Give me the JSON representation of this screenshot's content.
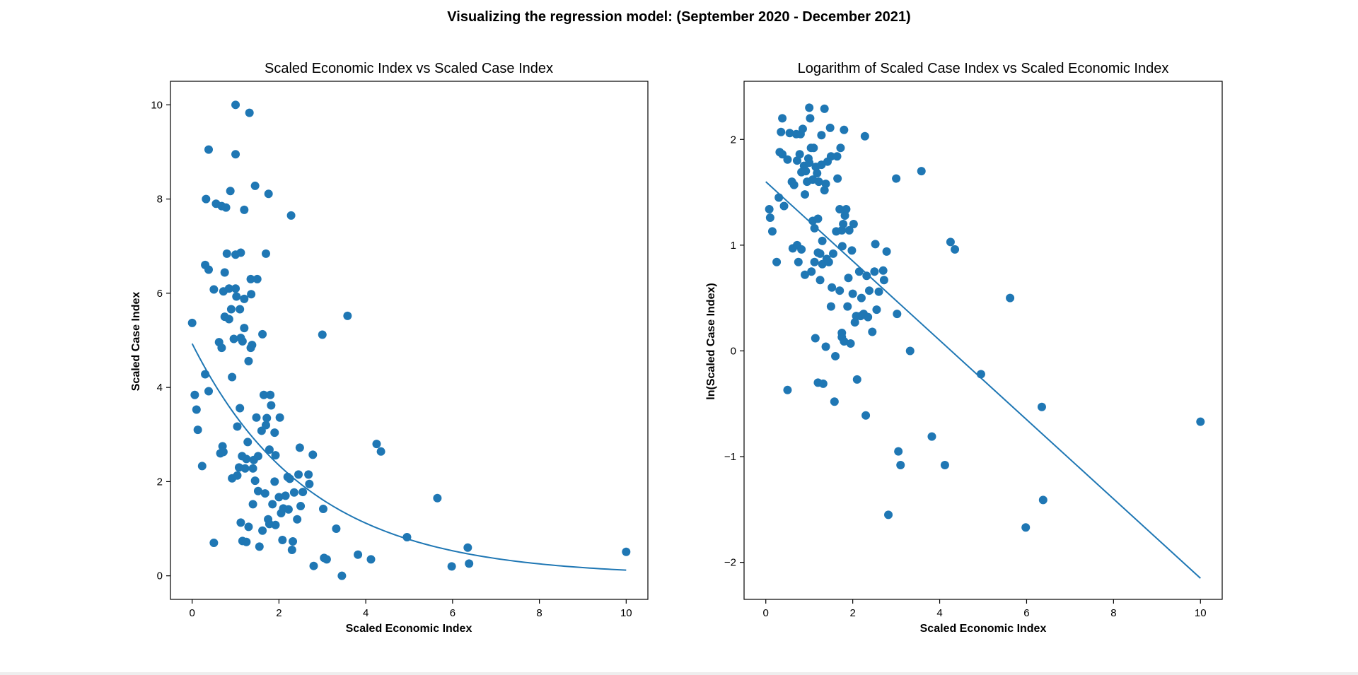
{
  "suptitle": "Visualizing the regression model: (September 2020 - December 2021)",
  "colors": {
    "point": "#1f77b4",
    "line": "#1f77b4",
    "axes": "#000000",
    "background": "#ffffff"
  },
  "chart_data": [
    {
      "type": "scatter",
      "title": "Scaled Economic Index vs Scaled Case Index",
      "xlabel": "Scaled Economic Index",
      "ylabel": "Scaled Case Index",
      "xlim": [
        -0.5,
        10.5
      ],
      "ylim": [
        -0.5,
        10.5
      ],
      "xticks": [
        0,
        2,
        4,
        6,
        8,
        10
      ],
      "yticks": [
        0,
        2,
        4,
        6,
        8,
        10
      ],
      "grid": false,
      "fit_curve": {
        "type": "exponential",
        "x": [
          0,
          10
        ],
        "a": 4.93,
        "b": -0.371
      },
      "points": [
        [
          0.0,
          5.37
        ],
        [
          0.06,
          3.84
        ],
        [
          0.1,
          3.53
        ],
        [
          0.13,
          3.1
        ],
        [
          0.23,
          2.33
        ],
        [
          0.3,
          4.28
        ],
        [
          0.32,
          8.0
        ],
        [
          0.38,
          9.05
        ],
        [
          0.38,
          3.92
        ],
        [
          0.3,
          6.6
        ],
        [
          0.38,
          6.5
        ],
        [
          0.5,
          6.08
        ],
        [
          0.5,
          0.7
        ],
        [
          0.55,
          7.9
        ],
        [
          0.65,
          2.6
        ],
        [
          0.62,
          4.96
        ],
        [
          0.68,
          4.84
        ],
        [
          0.68,
          7.85
        ],
        [
          0.7,
          2.75
        ],
        [
          0.72,
          2.63
        ],
        [
          0.72,
          6.04
        ],
        [
          0.75,
          6.44
        ],
        [
          0.75,
          5.5
        ],
        [
          0.78,
          7.82
        ],
        [
          0.8,
          6.84
        ],
        [
          0.85,
          5.45
        ],
        [
          0.85,
          6.1
        ],
        [
          0.88,
          8.17
        ],
        [
          0.9,
          5.66
        ],
        [
          0.92,
          4.22
        ],
        [
          0.92,
          2.07
        ],
        [
          0.96,
          5.03
        ],
        [
          1.0,
          10.0
        ],
        [
          1.0,
          6.82
        ],
        [
          1.0,
          8.95
        ],
        [
          1.0,
          6.1
        ],
        [
          1.02,
          5.93
        ],
        [
          1.04,
          3.17
        ],
        [
          1.04,
          2.13
        ],
        [
          1.08,
          2.3
        ],
        [
          1.1,
          3.56
        ],
        [
          1.1,
          5.66
        ],
        [
          1.12,
          6.86
        ],
        [
          1.12,
          5.05
        ],
        [
          1.12,
          1.13
        ],
        [
          1.15,
          2.54
        ],
        [
          1.16,
          4.98
        ],
        [
          1.16,
          0.74
        ],
        [
          1.2,
          7.77
        ],
        [
          1.2,
          5.26
        ],
        [
          1.2,
          5.88
        ],
        [
          1.22,
          2.28
        ],
        [
          1.25,
          2.48
        ],
        [
          1.25,
          0.72
        ],
        [
          1.28,
          2.84
        ],
        [
          1.3,
          4.56
        ],
        [
          1.3,
          1.04
        ],
        [
          1.32,
          9.83
        ],
        [
          1.35,
          6.3
        ],
        [
          1.35,
          4.84
        ],
        [
          1.36,
          5.98
        ],
        [
          1.38,
          4.9
        ],
        [
          1.4,
          2.28
        ],
        [
          1.4,
          1.52
        ],
        [
          1.42,
          2.46
        ],
        [
          1.45,
          8.28
        ],
        [
          1.45,
          2.02
        ],
        [
          1.48,
          3.36
        ],
        [
          1.5,
          6.3
        ],
        [
          1.52,
          2.54
        ],
        [
          1.52,
          1.8
        ],
        [
          1.55,
          0.62
        ],
        [
          1.6,
          3.08
        ],
        [
          1.62,
          5.13
        ],
        [
          1.62,
          0.96
        ],
        [
          1.65,
          3.84
        ],
        [
          1.68,
          1.75
        ],
        [
          1.7,
          6.84
        ],
        [
          1.7,
          3.2
        ],
        [
          1.72,
          3.35
        ],
        [
          1.75,
          1.2
        ],
        [
          1.76,
          8.11
        ],
        [
          1.78,
          1.1
        ],
        [
          1.78,
          2.68
        ],
        [
          1.8,
          3.84
        ],
        [
          1.82,
          3.62
        ],
        [
          1.85,
          1.52
        ],
        [
          1.9,
          3.04
        ],
        [
          1.92,
          2.56
        ],
        [
          1.9,
          2.0
        ],
        [
          1.92,
          1.08
        ],
        [
          2.0,
          1.67
        ],
        [
          2.02,
          3.36
        ],
        [
          2.05,
          1.33
        ],
        [
          2.08,
          0.76
        ],
        [
          2.1,
          1.43
        ],
        [
          2.15,
          1.7
        ],
        [
          2.2,
          2.1
        ],
        [
          2.22,
          1.41
        ],
        [
          2.25,
          2.06
        ],
        [
          2.28,
          7.65
        ],
        [
          2.3,
          0.55
        ],
        [
          2.32,
          0.73
        ],
        [
          2.35,
          1.77
        ],
        [
          2.42,
          1.2
        ],
        [
          2.45,
          2.15
        ],
        [
          2.48,
          2.72
        ],
        [
          2.5,
          1.48
        ],
        [
          2.55,
          1.78
        ],
        [
          2.68,
          2.15
        ],
        [
          2.7,
          1.95
        ],
        [
          2.78,
          2.57
        ],
        [
          2.8,
          0.21
        ],
        [
          3.0,
          5.12
        ],
        [
          3.02,
          1.42
        ],
        [
          3.04,
          0.38
        ],
        [
          3.1,
          0.35
        ],
        [
          3.32,
          1.0
        ],
        [
          3.45,
          0.0
        ],
        [
          3.58,
          5.52
        ],
        [
          3.82,
          0.45
        ],
        [
          4.12,
          0.35
        ],
        [
          4.25,
          2.8
        ],
        [
          4.35,
          2.64
        ],
        [
          4.95,
          0.82
        ],
        [
          5.65,
          1.65
        ],
        [
          5.98,
          0.2
        ],
        [
          6.35,
          0.6
        ],
        [
          6.38,
          0.26
        ],
        [
          10.0,
          0.51
        ]
      ]
    },
    {
      "type": "scatter",
      "title": "Logarithm of Scaled Case Index vs Scaled Economic Index",
      "xlabel": "Scaled Economic Index",
      "ylabel": "ln(Scaled Case Index)",
      "xlim": [
        -0.5,
        10.5
      ],
      "ylim": [
        -2.35,
        2.55
      ],
      "xticks": [
        0,
        2,
        4,
        6,
        8,
        10
      ],
      "yticks": [
        -2,
        -1,
        0,
        1,
        2
      ],
      "grid": false,
      "fit_line": {
        "x": [
          0,
          10
        ],
        "y": [
          1.6,
          -2.15
        ]
      },
      "points": [
        [
          0.08,
          1.34
        ],
        [
          0.1,
          1.26
        ],
        [
          0.15,
          1.13
        ],
        [
          0.25,
          0.84
        ],
        [
          0.3,
          1.45
        ],
        [
          0.32,
          1.88
        ],
        [
          0.35,
          2.07
        ],
        [
          0.38,
          2.2
        ],
        [
          0.38,
          1.86
        ],
        [
          0.42,
          1.37
        ],
        [
          0.5,
          1.81
        ],
        [
          0.5,
          -0.37
        ],
        [
          0.55,
          2.06
        ],
        [
          0.6,
          1.6
        ],
        [
          0.62,
          0.97
        ],
        [
          0.65,
          1.57
        ],
        [
          0.7,
          2.05
        ],
        [
          0.72,
          1.8
        ],
        [
          0.72,
          1.0
        ],
        [
          0.75,
          0.84
        ],
        [
          0.78,
          1.86
        ],
        [
          0.8,
          2.05
        ],
        [
          0.82,
          1.69
        ],
        [
          0.82,
          0.96
        ],
        [
          0.85,
          2.1
        ],
        [
          0.88,
          1.75
        ],
        [
          0.9,
          1.48
        ],
        [
          0.9,
          0.72
        ],
        [
          0.92,
          1.7
        ],
        [
          0.95,
          1.6
        ],
        [
          0.98,
          1.82
        ],
        [
          1.0,
          2.3
        ],
        [
          1.0,
          1.78
        ],
        [
          1.02,
          2.2
        ],
        [
          1.04,
          1.92
        ],
        [
          1.05,
          0.75
        ],
        [
          1.08,
          1.23
        ],
        [
          1.08,
          1.62
        ],
        [
          1.1,
          1.92
        ],
        [
          1.12,
          0.84
        ],
        [
          1.12,
          1.16
        ],
        [
          1.14,
          0.12
        ],
        [
          1.15,
          1.74
        ],
        [
          1.18,
          1.68
        ],
        [
          1.2,
          1.25
        ],
        [
          1.2,
          0.93
        ],
        [
          1.2,
          -0.3
        ],
        [
          1.22,
          1.6
        ],
        [
          1.25,
          0.92
        ],
        [
          1.25,
          0.67
        ],
        [
          1.28,
          1.76
        ],
        [
          1.28,
          2.04
        ],
        [
          1.3,
          1.04
        ],
        [
          1.3,
          0.82
        ],
        [
          1.32,
          -0.31
        ],
        [
          1.35,
          2.29
        ],
        [
          1.35,
          1.52
        ],
        [
          1.38,
          1.58
        ],
        [
          1.38,
          0.04
        ],
        [
          1.4,
          0.87
        ],
        [
          1.42,
          1.79
        ],
        [
          1.45,
          0.84
        ],
        [
          1.48,
          2.11
        ],
        [
          1.5,
          1.84
        ],
        [
          1.5,
          0.42
        ],
        [
          1.52,
          0.6
        ],
        [
          1.55,
          0.92
        ],
        [
          1.6,
          -0.05
        ],
        [
          1.58,
          -0.48
        ],
        [
          1.62,
          1.13
        ],
        [
          1.64,
          1.84
        ],
        [
          1.65,
          1.63
        ],
        [
          1.7,
          0.57
        ],
        [
          1.7,
          1.34
        ],
        [
          1.72,
          1.92
        ],
        [
          1.75,
          1.14
        ],
        [
          1.75,
          0.17
        ],
        [
          1.75,
          0.13
        ],
        [
          1.76,
          0.99
        ],
        [
          1.78,
          1.2
        ],
        [
          1.8,
          2.09
        ],
        [
          1.8,
          0.09
        ],
        [
          1.82,
          1.28
        ],
        [
          1.85,
          1.34
        ],
        [
          1.88,
          0.42
        ],
        [
          1.9,
          0.69
        ],
        [
          1.92,
          1.14
        ],
        [
          1.95,
          0.07
        ],
        [
          1.98,
          0.95
        ],
        [
          2.0,
          0.54
        ],
        [
          2.02,
          1.2
        ],
        [
          2.05,
          0.27
        ],
        [
          2.08,
          0.33
        ],
        [
          2.1,
          -0.27
        ],
        [
          2.15,
          0.75
        ],
        [
          2.18,
          0.33
        ],
        [
          2.2,
          0.5
        ],
        [
          2.25,
          0.35
        ],
        [
          2.28,
          2.03
        ],
        [
          2.3,
          -0.61
        ],
        [
          2.32,
          0.71
        ],
        [
          2.35,
          0.32
        ],
        [
          2.38,
          0.57
        ],
        [
          2.45,
          0.18
        ],
        [
          2.5,
          0.75
        ],
        [
          2.52,
          1.01
        ],
        [
          2.55,
          0.39
        ],
        [
          2.6,
          0.56
        ],
        [
          2.7,
          0.76
        ],
        [
          2.72,
          0.67
        ],
        [
          2.78,
          0.94
        ],
        [
          2.82,
          -1.55
        ],
        [
          3.0,
          1.63
        ],
        [
          3.02,
          0.35
        ],
        [
          3.05,
          -0.95
        ],
        [
          3.1,
          -1.08
        ],
        [
          3.32,
          0.0
        ],
        [
          3.58,
          1.7
        ],
        [
          3.82,
          -0.81
        ],
        [
          4.12,
          -1.08
        ],
        [
          4.25,
          1.03
        ],
        [
          4.35,
          0.96
        ],
        [
          4.95,
          -0.22
        ],
        [
          5.62,
          0.5
        ],
        [
          5.98,
          -1.67
        ],
        [
          6.35,
          -0.53
        ],
        [
          6.38,
          -1.41
        ],
        [
          10.0,
          -0.67
        ]
      ]
    }
  ]
}
